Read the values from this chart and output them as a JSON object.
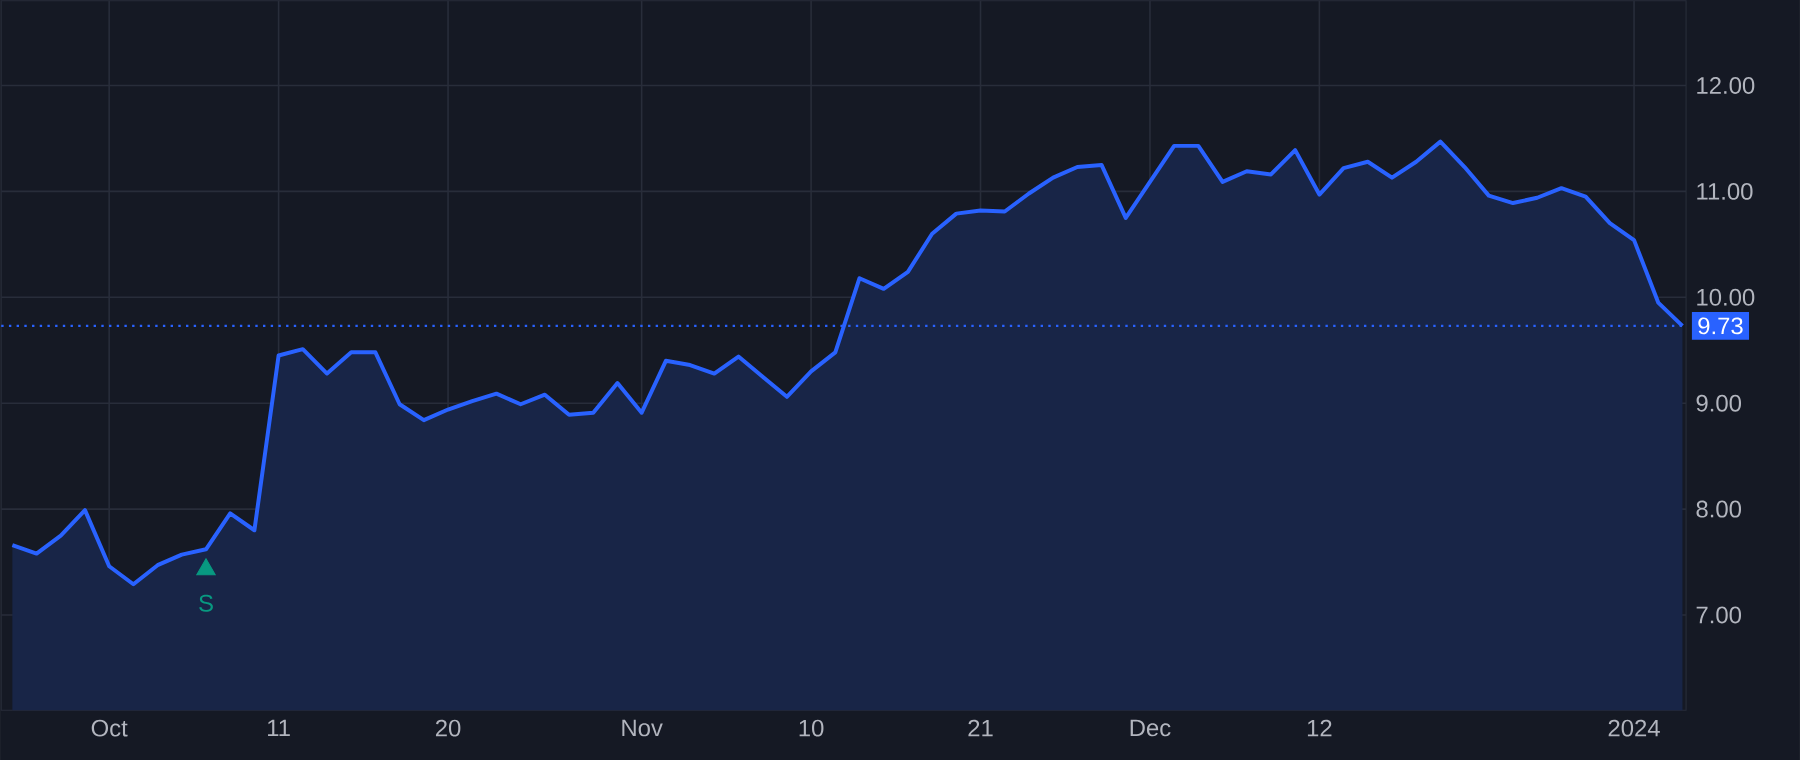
{
  "chart_data": {
    "type": "area",
    "categories": [
      null,
      null,
      null,
      null,
      "Oct",
      null,
      null,
      null,
      null,
      null,
      null,
      "11",
      null,
      null,
      null,
      null,
      null,
      null,
      "20",
      null,
      null,
      null,
      null,
      null,
      null,
      null,
      "Nov",
      null,
      null,
      null,
      null,
      null,
      null,
      "10",
      null,
      null,
      null,
      null,
      null,
      null,
      "21",
      null,
      null,
      null,
      null,
      null,
      null,
      "Dec",
      null,
      null,
      null,
      null,
      null,
      null,
      "12",
      null,
      null,
      null,
      null,
      null,
      null,
      null,
      null,
      null,
      null,
      null,
      null,
      "2024",
      null,
      null
    ],
    "series": [
      {
        "color": "#2962ff",
        "values": [
          7.66,
          7.58,
          7.75,
          7.99,
          7.46,
          7.29,
          7.47,
          7.57,
          7.62,
          7.96,
          7.8,
          9.45,
          9.51,
          9.28,
          9.48,
          9.48,
          8.99,
          8.84,
          8.94,
          9.02,
          9.09,
          8.99,
          9.08,
          8.89,
          8.91,
          9.19,
          8.91,
          9.4,
          9.36,
          9.28,
          9.44,
          9.25,
          9.06,
          9.3,
          9.48,
          10.18,
          10.08,
          10.24,
          10.6,
          10.79,
          10.82,
          10.81,
          10.98,
          11.13,
          11.23,
          11.25,
          10.75,
          11.09,
          11.43,
          11.43,
          11.09,
          11.19,
          11.16,
          11.39,
          10.97,
          11.22,
          11.28,
          11.13,
          11.28,
          11.47,
          11.23,
          10.96,
          10.89,
          10.94,
          11.03,
          10.95,
          10.7,
          10.54,
          9.95,
          9.73
        ]
      },
      {
        "type": "scatter",
        "color": "#089981",
        "marker": "triangle",
        "values": [
          null,
          null,
          null,
          null,
          null,
          null,
          null,
          null,
          7.43,
          null,
          null,
          null,
          null,
          null,
          null,
          null,
          null,
          null,
          null,
          null,
          null,
          null,
          null,
          null,
          null,
          null,
          null,
          null,
          null,
          null,
          null,
          null,
          null,
          null,
          null,
          null,
          null,
          null,
          null,
          null,
          null,
          null,
          null,
          null,
          null,
          null,
          null,
          null,
          null,
          null,
          null,
          null,
          null,
          null,
          null,
          null,
          null,
          null,
          null,
          null,
          null,
          null,
          null,
          null,
          null,
          null,
          null,
          null,
          null,
          null
        ],
        "value_labels": [
          null,
          null,
          null,
          null,
          null,
          null,
          null,
          null,
          "S",
          null,
          null,
          null,
          null,
          null,
          null,
          null,
          null,
          null,
          null,
          null,
          null,
          null,
          null,
          null,
          null,
          null,
          null,
          null,
          null,
          null,
          null,
          null,
          null,
          null,
          null,
          null,
          null,
          null,
          null,
          null,
          null,
          null,
          null,
          null,
          null,
          null,
          null,
          null,
          null,
          null,
          null,
          null,
          null,
          null,
          null,
          null,
          null,
          null,
          null,
          null,
          null,
          null,
          null,
          null,
          null,
          null,
          null,
          null,
          null,
          null
        ]
      }
    ],
    "ylim": [
      6.1,
      12.8
    ],
    "yticks": [
      {
        "value": 7,
        "label": "7.00"
      },
      {
        "value": 8,
        "label": "8.00"
      },
      {
        "value": 9,
        "label": "9.00"
      },
      {
        "value": 10,
        "label": "10.00"
      },
      {
        "value": 11,
        "label": "11.00"
      },
      {
        "value": 12,
        "label": "12.00"
      }
    ],
    "grid": true,
    "ref_lines": [
      {
        "axis": "y",
        "value": 9.73,
        "label": "9.73",
        "color": "#2962ff",
        "line_style": "dotted"
      }
    ]
  }
}
